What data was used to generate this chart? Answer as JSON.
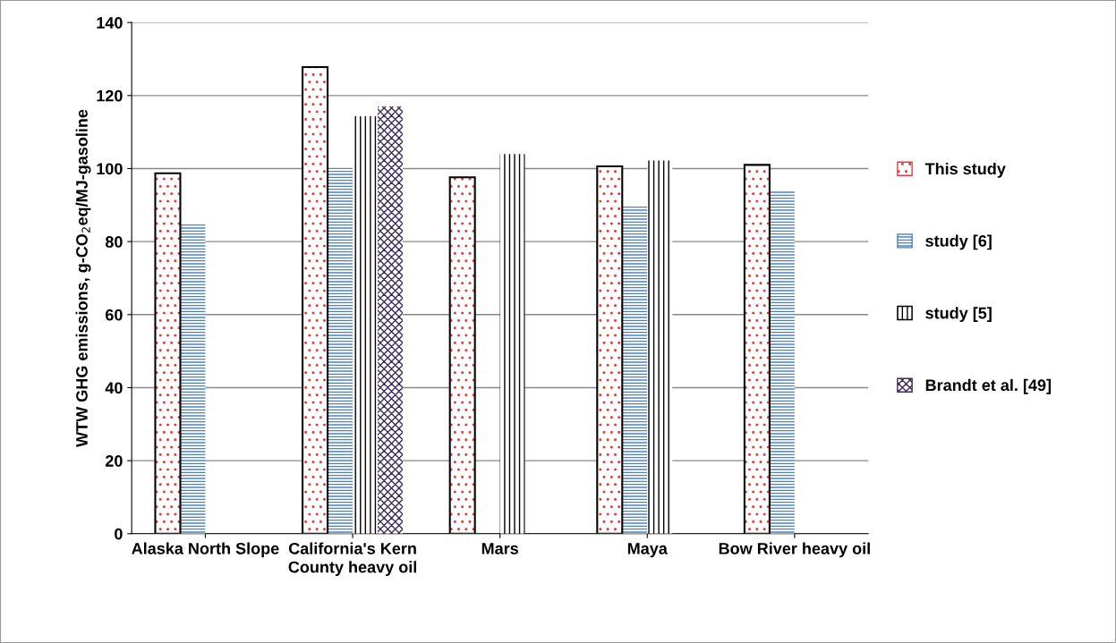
{
  "chart_data": {
    "type": "bar",
    "ylabel": "WTW GHG emissions, g-CO$_{2}$eq/MJ-gasoline",
    "categories": [
      "Alaska North Slope",
      "California's Kern County heavy oil",
      "Mars",
      "Maya",
      "Bow River heavy oil"
    ],
    "series": [
      {
        "name": "This study",
        "color": "#e03c3c",
        "values": [
          98.7,
          127.8,
          97.6,
          100.6,
          101
        ]
      },
      {
        "name": "study [6]",
        "color": "#4f81bd",
        "values": [
          85,
          100,
          null,
          90,
          94
        ]
      },
      {
        "name": "study [5]",
        "color": "#000000",
        "values": [
          null,
          114.3,
          104,
          102.2,
          null
        ]
      },
      {
        "name": "Brandt et al. [49]",
        "color": "#3d2b56",
        "values": [
          null,
          117,
          null,
          null,
          null
        ]
      }
    ],
    "ylim": [
      0,
      140
    ],
    "yticks": [
      0,
      20,
      40,
      60,
      80,
      100,
      120,
      140
    ],
    "grid": "y",
    "legend": "right"
  }
}
